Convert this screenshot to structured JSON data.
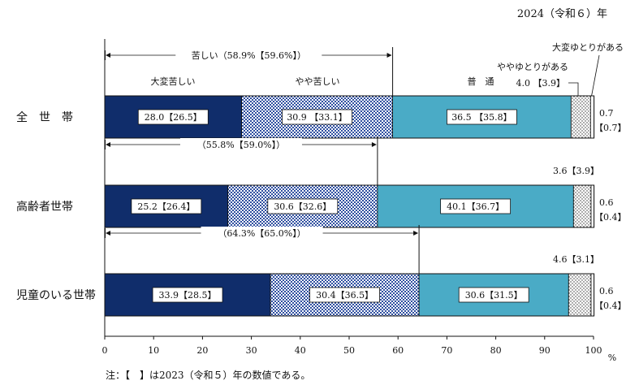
{
  "chart_data": {
    "type": "bar",
    "stacked": "horizontal-100pct",
    "year_label": "2024（令和６）年",
    "unit": "%",
    "xlim": [
      0,
      100
    ],
    "x_ticks": [
      "0",
      "10",
      "20",
      "30",
      "40",
      "50",
      "60",
      "70",
      "80",
      "90",
      "100"
    ],
    "categories": [
      "全　世　帯",
      "高齢者世帯",
      "児童のいる世帯"
    ],
    "series": [
      {
        "name": "大変苦しい",
        "values": [
          28.0,
          25.2,
          33.9
        ],
        "prev": [
          26.5,
          26.4,
          28.5
        ],
        "color": "#102d6b"
      },
      {
        "name": "やや苦しい",
        "values": [
          30.9,
          30.6,
          30.4
        ],
        "prev": [
          33.1,
          32.6,
          36.5
        ],
        "color": "#2f4fa0"
      },
      {
        "name": "普　通",
        "values": [
          36.5,
          40.1,
          30.6
        ],
        "prev": [
          35.8,
          36.7,
          31.5
        ],
        "color": "#4aabc6"
      },
      {
        "name": "ややゆとりがある",
        "values": [
          4.0,
          3.6,
          4.6
        ],
        "prev": [
          3.9,
          3.9,
          3.1
        ],
        "color": "#ffffff"
      },
      {
        "name": "大変ゆとりがある",
        "values": [
          0.7,
          0.6,
          0.6
        ],
        "prev": [
          0.7,
          0.4,
          0.4
        ],
        "color": "#ffffff"
      }
    ],
    "bar_labels": [
      [
        "28.0【26.5】",
        "30.9 【33.1】",
        "36.5 【35.8】"
      ],
      [
        "25.2【26.4】",
        "30.6【32.6】",
        "40.1【36.7】"
      ],
      [
        "33.9【28.5】",
        "30.4【36.5】",
        "30.6【31.5】"
      ]
    ],
    "small_labels": {
      "yutori_some": [
        "4.0 【3.9】",
        "3.6【3.9】",
        "4.6【3.1】"
      ],
      "yutori_great_a": [
        "0.7",
        "0.6",
        "0.6"
      ],
      "yutori_great_b": [
        "【0.7】",
        "【0.4】",
        "【0.4】"
      ]
    },
    "brackets": [
      {
        "label": "苦しい（58.9%【59.6%】）",
        "value": 58.9
      },
      {
        "label": "（55.8%【59.0%】）",
        "value": 55.8
      },
      {
        "label": "（64.3%【65.0%】）",
        "value": 64.3
      }
    ],
    "header_labels": {
      "taihen_kurushii": "大変苦しい",
      "yaya_kurushii": "やや苦しい",
      "futsuu": "普　通",
      "yaya_yutori": "ややゆとりがある",
      "taihen_yutori": "大変ゆとりがある"
    },
    "note": "注：【　】は2023（令和５）年の数値である。"
  }
}
